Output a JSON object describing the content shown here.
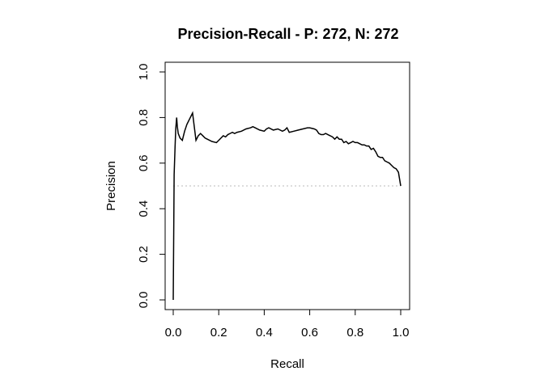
{
  "chart_data": {
    "type": "line",
    "title": "Precision-Recall - P: 272, N: 272",
    "xlabel": "Recall",
    "ylabel": "Precision",
    "xlim": [
      0,
      1
    ],
    "ylim": [
      0,
      1
    ],
    "xticks": [
      "0.0",
      "0.2",
      "0.4",
      "0.6",
      "0.8",
      "1.0"
    ],
    "yticks": [
      "0.0",
      "0.2",
      "0.4",
      "0.6",
      "0.8",
      "1.0"
    ],
    "grid": false,
    "legend": "none",
    "baseline": {
      "y": 0.5,
      "style": "dotted",
      "color": "#bbbbbb"
    },
    "series": [
      {
        "color": "#000000",
        "x": [
          0.0,
          0.004,
          0.008,
          0.011,
          0.015,
          0.018,
          0.022,
          0.03,
          0.04,
          0.05,
          0.06,
          0.075,
          0.085,
          0.095,
          0.1,
          0.11,
          0.12,
          0.13,
          0.14,
          0.15,
          0.17,
          0.19,
          0.2,
          0.21,
          0.22,
          0.23,
          0.24,
          0.25,
          0.26,
          0.27,
          0.28,
          0.3,
          0.32,
          0.34,
          0.35,
          0.36,
          0.38,
          0.4,
          0.41,
          0.42,
          0.44,
          0.46,
          0.48,
          0.49,
          0.5,
          0.51,
          0.53,
          0.55,
          0.57,
          0.59,
          0.6,
          0.62,
          0.63,
          0.64,
          0.65,
          0.66,
          0.67,
          0.68,
          0.7,
          0.71,
          0.72,
          0.73,
          0.74,
          0.75,
          0.76,
          0.77,
          0.78,
          0.79,
          0.8,
          0.81,
          0.82,
          0.83,
          0.84,
          0.85,
          0.86,
          0.87,
          0.88,
          0.89,
          0.9,
          0.91,
          0.92,
          0.93,
          0.94,
          0.95,
          0.96,
          0.97,
          0.98,
          0.99,
          1.0
        ],
        "y": [
          0.0,
          0.55,
          0.67,
          0.75,
          0.8,
          0.76,
          0.73,
          0.71,
          0.7,
          0.74,
          0.77,
          0.8,
          0.82,
          0.74,
          0.7,
          0.72,
          0.73,
          0.72,
          0.71,
          0.705,
          0.695,
          0.69,
          0.7,
          0.71,
          0.72,
          0.715,
          0.725,
          0.73,
          0.735,
          0.73,
          0.735,
          0.74,
          0.75,
          0.755,
          0.76,
          0.755,
          0.745,
          0.74,
          0.75,
          0.755,
          0.745,
          0.75,
          0.74,
          0.745,
          0.755,
          0.735,
          0.74,
          0.745,
          0.75,
          0.755,
          0.755,
          0.75,
          0.745,
          0.73,
          0.725,
          0.725,
          0.73,
          0.725,
          0.715,
          0.705,
          0.715,
          0.705,
          0.705,
          0.69,
          0.695,
          0.685,
          0.69,
          0.695,
          0.69,
          0.69,
          0.685,
          0.68,
          0.68,
          0.675,
          0.675,
          0.66,
          0.665,
          0.65,
          0.63,
          0.625,
          0.625,
          0.61,
          0.605,
          0.6,
          0.59,
          0.58,
          0.575,
          0.56,
          0.5
        ]
      }
    ]
  }
}
